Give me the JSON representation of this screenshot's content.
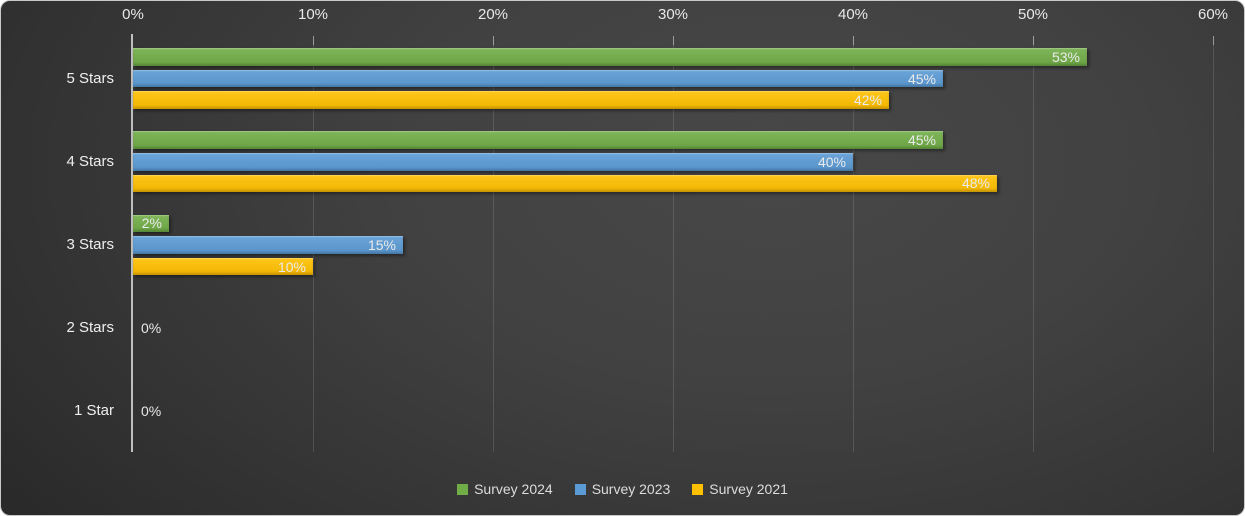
{
  "chart_data": {
    "type": "bar",
    "orientation": "horizontal",
    "title": "",
    "categories": [
      "5 Stars",
      "4 Stars",
      "3 Stars",
      "2 Stars",
      "1 Star"
    ],
    "series": [
      {
        "name": "Survey 2024",
        "color": "#70AD47",
        "values": [
          53,
          45,
          2,
          0,
          0
        ]
      },
      {
        "name": "Survey 2023",
        "color": "#5B9BD5",
        "values": [
          45,
          40,
          15,
          0,
          0
        ]
      },
      {
        "name": "Survey 2021",
        "color": "#FFC000",
        "values": [
          42,
          48,
          10,
          0,
          0
        ]
      }
    ],
    "data_labels": [
      [
        "53%",
        "45%",
        "2%",
        "0%",
        "0%"
      ],
      [
        "45%",
        "40%",
        "15%",
        "0%",
        "0%"
      ],
      [
        "42%",
        "48%",
        "10%",
        "0%",
        "0%"
      ]
    ],
    "zero_label": "0%",
    "value_axis": {
      "position": "top",
      "min": 0,
      "max": 60,
      "step": 10,
      "unit": "%",
      "tick_labels": [
        "0%",
        "10%",
        "20%",
        "30%",
        "40%",
        "50%",
        "60%"
      ]
    },
    "grid": true,
    "legend": {
      "position": "bottom",
      "entries": [
        "Survey 2024",
        "Survey 2023",
        "Survey 2021"
      ]
    },
    "styles": {
      "background_center": "#484848",
      "background_edge": "#2a2a2a",
      "axis_line_color": "#bfbfbf",
      "gridline_color": "rgba(255,255,255,0.13)",
      "tick_text_color": "#e8e8e8",
      "category_text_color": "#efefef",
      "bar_label_color": "#eaeaea",
      "legend_text_color": "#dcdcdc"
    }
  }
}
